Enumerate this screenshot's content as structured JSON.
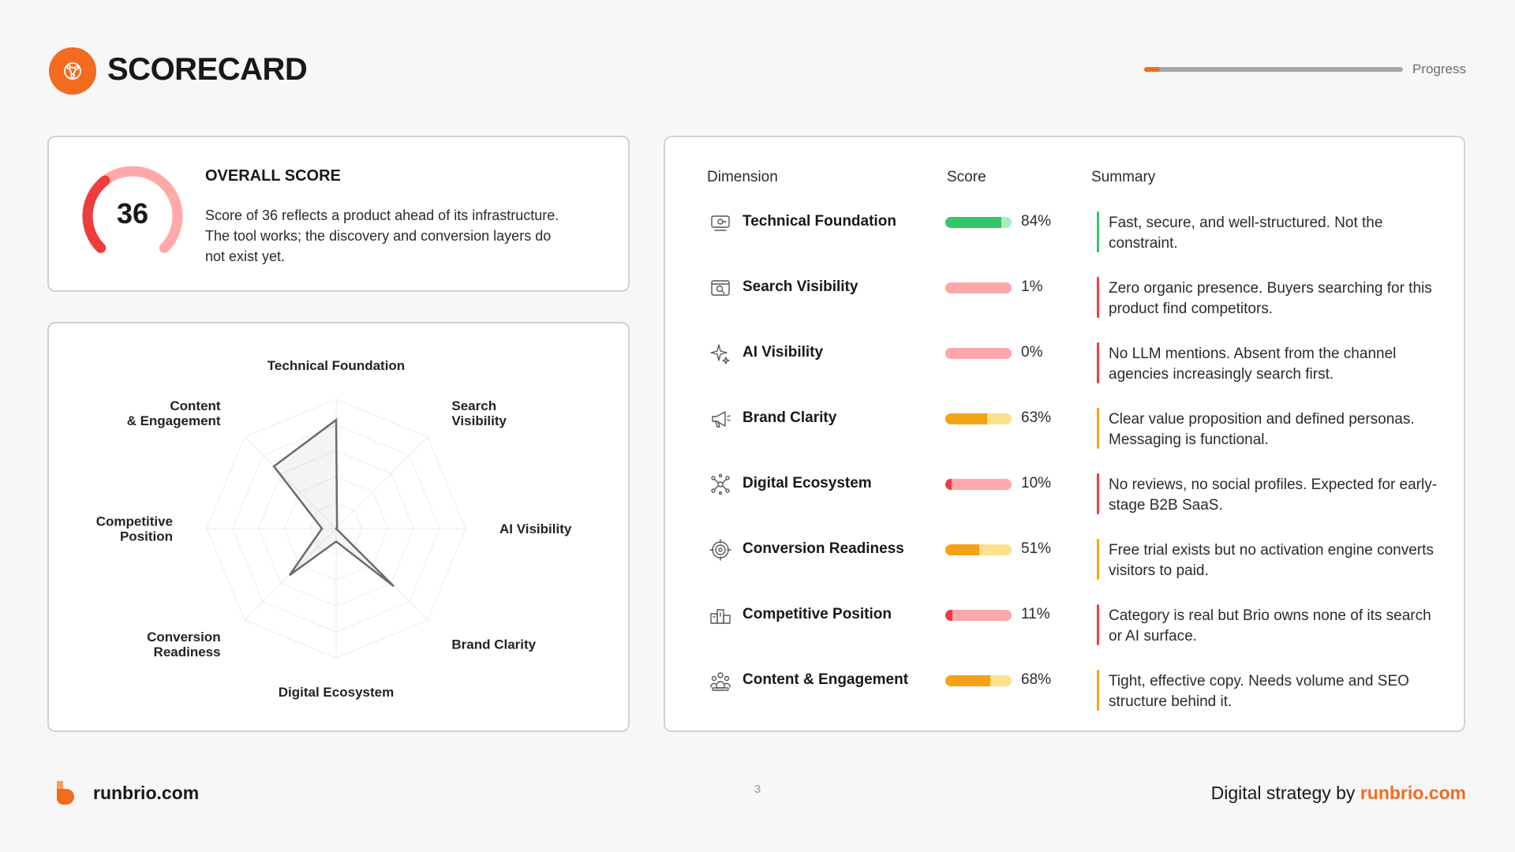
{
  "header": {
    "title": "SCORECARD",
    "icon": "target-network-icon",
    "progress_label": "Progress",
    "progress_fraction": 0.06
  },
  "overall": {
    "score": "36",
    "score_value": 36,
    "title": "OVERALL SCORE",
    "description": "Score of 36 reflects a product ahead of its infrastructure. The tool works; the discovery and conversion layers do not exist yet."
  },
  "radar": {
    "labels": [
      "Technical Foundation",
      "Search Visibility",
      "AI Visibility",
      "Brand Clarity",
      "Digital Ecosystem",
      "Conversion Readiness",
      "Competitive Position",
      "Content & Engagement"
    ],
    "label_lines": [
      [
        "Technical Foundation"
      ],
      [
        "Search",
        "Visibility"
      ],
      [
        "AI Visibility"
      ],
      [
        "Brand Clarity"
      ],
      [
        "Digital Ecosystem"
      ],
      [
        "Conversion",
        "Readiness"
      ],
      [
        "Competitive",
        "Position"
      ],
      [
        "Content",
        "& Engagement"
      ]
    ],
    "values": [
      84,
      1,
      0,
      63,
      10,
      51,
      11,
      68
    ],
    "max": 100
  },
  "table": {
    "headers": {
      "dimension": "Dimension",
      "score": "Score",
      "summary": "Summary"
    },
    "rows": [
      {
        "icon": "server-icon",
        "name": "Technical Foundation",
        "score": "84%",
        "value": 84,
        "bar_color": "#33c76a",
        "track_color": "#a6edbf",
        "accent": "#33c76a",
        "summary": "Fast, secure, and well-structured. Not the constraint."
      },
      {
        "icon": "browser-search-icon",
        "name": "Search Visibility",
        "score": "1%",
        "value": 1,
        "bar_color": "#ff9ea2",
        "track_color": "#ffa7aa",
        "accent": "#ee3b45",
        "summary": "Zero organic presence. Buyers searching for this product find competitors."
      },
      {
        "icon": "sparkle-icon",
        "name": "AI Visibility",
        "score": "0%",
        "value": 0,
        "bar_color": "#ff9ea2",
        "track_color": "#ffa7aa",
        "accent": "#ee3b45",
        "summary": "No LLM mentions. Absent from the channel agencies increasingly search first."
      },
      {
        "icon": "megaphone-icon",
        "name": "Brand Clarity",
        "score": "63%",
        "value": 63,
        "bar_color": "#f5a216",
        "track_color": "#fde08c",
        "accent": "#f5a216",
        "summary": "Clear value proposition and defined personas. Messaging is functional."
      },
      {
        "icon": "network-nodes-icon",
        "name": "Digital Ecosystem",
        "score": "10%",
        "value": 10,
        "bar_color": "#ee3b45",
        "track_color": "#ffa7aa",
        "accent": "#ee3b45",
        "summary": "No reviews, no social profiles. Expected for early-stage B2B SaaS."
      },
      {
        "icon": "target-icon",
        "name": "Conversion Readiness",
        "score": "51%",
        "value": 51,
        "bar_color": "#f5a216",
        "track_color": "#fde08c",
        "accent": "#f5a216",
        "summary": "Free trial exists but no activation engine converts visitors to paid."
      },
      {
        "icon": "podium-icon",
        "name": "Competitive Position",
        "score": "11%",
        "value": 11,
        "bar_color": "#ee3b45",
        "track_color": "#ffa7aa",
        "accent": "#ee3b45",
        "summary": "Category is real but Brio owns none of its search or AI surface."
      },
      {
        "icon": "people-icon",
        "name": "Content & Engagement",
        "score": "68%",
        "value": 68,
        "bar_color": "#f5a216",
        "track_color": "#fde08c",
        "accent": "#f5a216",
        "summary": "Tight, effective copy. Needs volume and SEO structure behind it."
      }
    ]
  },
  "footer": {
    "site": "runbrio.com",
    "page_number": "3",
    "tagline": "Digital strategy by ",
    "brand": "runbrio.com",
    "brand_color": "#f26b1f"
  }
}
